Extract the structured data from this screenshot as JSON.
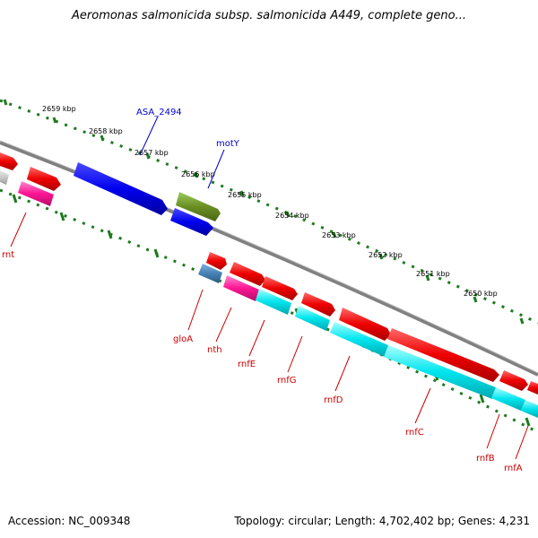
{
  "title": "Aeromonas salmonicida subsp. salmonicida A449, complete geno...",
  "footer": {
    "accession": "Accession: NC_009348",
    "summary": "Topology: circular; Length: 4,702,402 bp; Genes: 4,231"
  },
  "colors": {
    "backbone": "#808080",
    "ticks": "#1f7a1f",
    "forward_gene_label": "#0000cc",
    "reverse_gene_label": "#cc0000"
  },
  "scale_labels": [
    "2659 kbp",
    "2658 kbp",
    "2657 kbp",
    "2656 kbp",
    "2655 kbp",
    "2654 kbp",
    "2653 kbp",
    "2652 kbp",
    "2651 kbp",
    "2650 kbp"
  ],
  "forward_labels": [
    "ASA_2494",
    "motY"
  ],
  "reverse_labels": [
    "rnt",
    "gloA",
    "nth",
    "rnfE",
    "rnfG",
    "rnfD",
    "rnfC",
    "rnfB",
    "rnfA"
  ]
}
